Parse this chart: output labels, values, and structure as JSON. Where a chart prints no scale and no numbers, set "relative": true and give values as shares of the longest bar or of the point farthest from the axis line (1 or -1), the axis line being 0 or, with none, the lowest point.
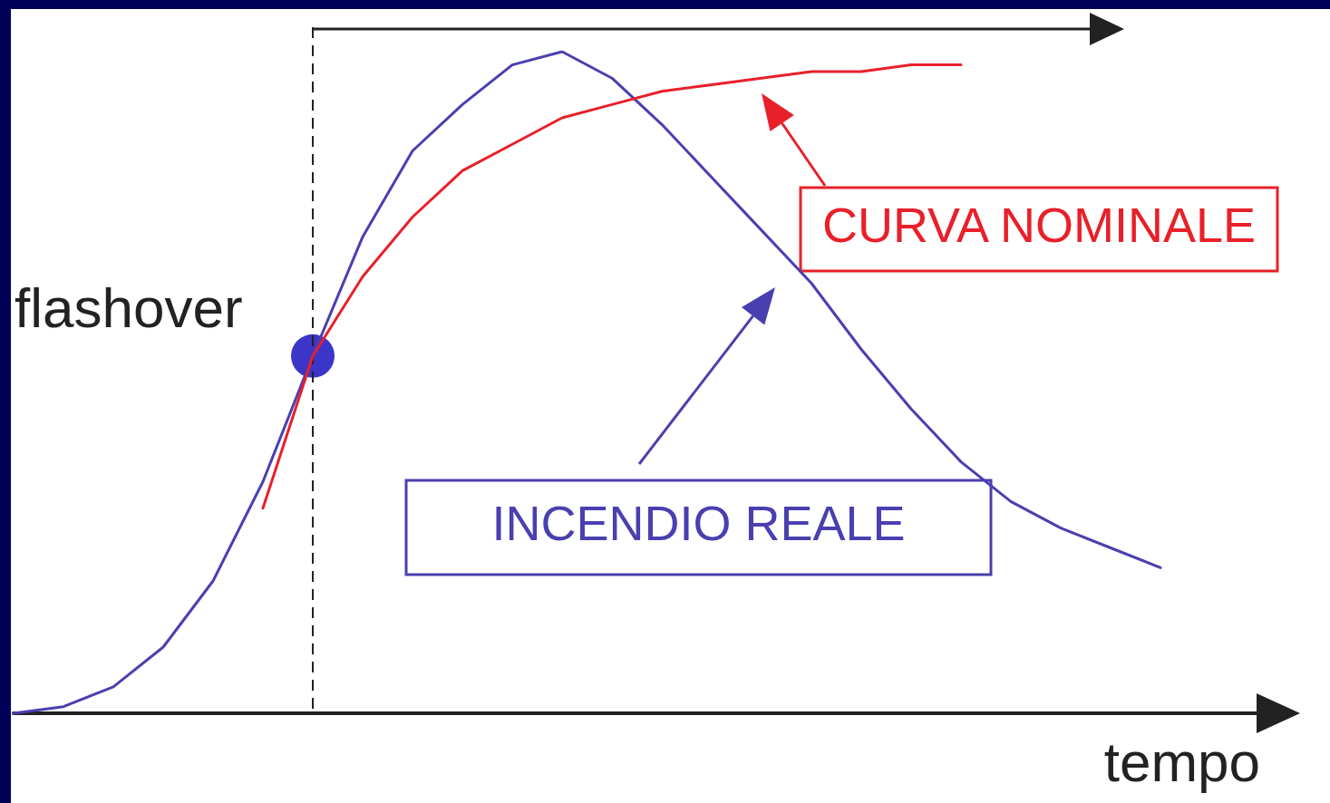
{
  "chart_data": {
    "type": "line",
    "relative": true,
    "xlabel": "tempo",
    "legend": "right",
    "marker": "none",
    "line_style": "solid",
    "grid": false,
    "categories": [
      null,
      null,
      null,
      null,
      null,
      null,
      null,
      null,
      null,
      null,
      null,
      null,
      null,
      null,
      null,
      null,
      null,
      null,
      null,
      null,
      null,
      null,
      null,
      null,
      null,
      null
    ],
    "series": [
      {
        "name": "INCENDIO REALE",
        "color": "#4a3fb0",
        "values": [
          0,
          0.01,
          0.04,
          0.1,
          0.2,
          0.35,
          0.54,
          0.72,
          0.85,
          0.92,
          0.98,
          1,
          0.96,
          0.89,
          0.81,
          0.73,
          0.65,
          0.55,
          0.46,
          0.38,
          0.32,
          0.28,
          0.25,
          0.22,
          null,
          null
        ]
      },
      {
        "name": "CURVA NOMINALE",
        "color": "#e8202a",
        "values": [
          null,
          null,
          null,
          null,
          null,
          0.31,
          0.54,
          0.66,
          0.75,
          0.82,
          0.86,
          0.9,
          0.92,
          0.94,
          0.95,
          0.96,
          0.97,
          0.97,
          0.98,
          0.98,
          null,
          null,
          null,
          null,
          null,
          null
        ]
      }
    ],
    "annotations": [
      "flashover"
    ]
  }
}
